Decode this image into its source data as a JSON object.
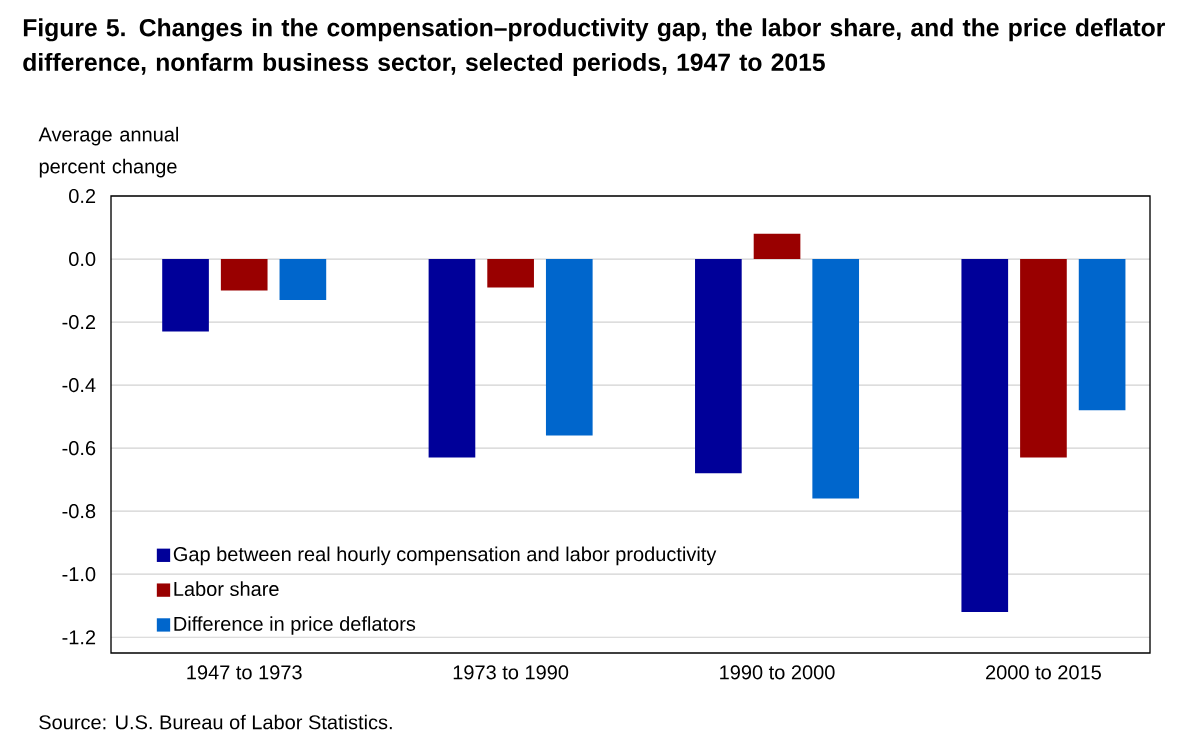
{
  "chart_data": {
    "type": "bar",
    "title": "Figure 5. Changes in the compensation–productivity gap, the labor share, and the price deflator difference, nonfarm business sector, selected periods, 1947 to 2015",
    "ylabel": "Average annual percent change",
    "annotations": [
      "Source: U.S. Bureau of Labor Statistics."
    ],
    "categories": [
      "1947 to 1973",
      "1973 to 1990",
      "1990 to 2000",
      "2000 to 2015"
    ],
    "series": [
      {
        "name": "Gap between real hourly compensation and labor productivity",
        "color": "#000099",
        "values": [
          -0.23,
          -0.63,
          -0.68,
          -1.12
        ]
      },
      {
        "name": "Labor share",
        "color": "#990000",
        "values": [
          -0.1,
          -0.09,
          0.08,
          -0.63
        ]
      },
      {
        "name": "Difference in price deflators",
        "color": "#0066cc",
        "values": [
          -0.13,
          -0.56,
          -0.76,
          -0.48
        ]
      }
    ],
    "ylim": [
      -1.25,
      0.2
    ],
    "yticks": [
      {
        "value": 0.2,
        "label": "0.2"
      },
      {
        "value": 0.0,
        "label": "0.0"
      },
      {
        "value": -0.2,
        "label": "-0.2"
      },
      {
        "value": -0.4,
        "label": "-0.4"
      },
      {
        "value": -0.6,
        "label": "-0.6"
      },
      {
        "value": -0.8,
        "label": "-0.8"
      },
      {
        "value": -1.0,
        "label": "-1.0"
      },
      {
        "value": -1.2,
        "label": "-1.2"
      }
    ],
    "grid": "y",
    "legend": "bottom left"
  }
}
